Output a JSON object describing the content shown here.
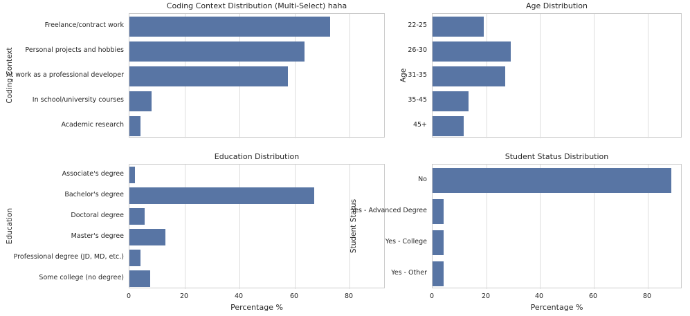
{
  "style": {
    "bar_color": "#5875a4",
    "grid_color": "#dcdcdc",
    "spine_color": "#cacaca",
    "text_color": "#262626",
    "background": "#ffffff"
  },
  "chart_data": [
    {
      "id": "coding-context",
      "type": "bar",
      "orientation": "horizontal",
      "title": "Coding Context Distribution (Multi-Select) haha",
      "ylabel": "Coding Context",
      "xlabel": "",
      "categories": [
        "Freelance/contract work",
        "Personal projects and hobbies",
        "At work as a professional developer",
        "In school/university courses",
        "Academic research"
      ],
      "values": [
        73,
        63.5,
        57.5,
        8,
        4
      ],
      "x_ticks": [
        0,
        20,
        40,
        60,
        80
      ],
      "xlim": [
        0,
        93
      ],
      "show_x_tick_labels": false,
      "grid": true,
      "legend": null
    },
    {
      "id": "age",
      "type": "bar",
      "orientation": "horizontal",
      "title": "Age Distribution",
      "ylabel": "Age",
      "xlabel": "",
      "categories": [
        "22-25",
        "26-30",
        "31-35",
        "35-45",
        "45+"
      ],
      "values": [
        19,
        29,
        27,
        13.5,
        11.5
      ],
      "x_ticks": [
        0,
        20,
        40,
        60,
        80
      ],
      "xlim": [
        0,
        93
      ],
      "show_x_tick_labels": false,
      "grid": true,
      "legend": null
    },
    {
      "id": "education",
      "type": "bar",
      "orientation": "horizontal",
      "title": "Education Distribution",
      "ylabel": "Education",
      "xlabel": "Percentage %",
      "categories": [
        "Associate's degree",
        "Bachelor's degree",
        "Doctoral degree",
        "Master's degree",
        "Professional degree (JD, MD, etc.)",
        "Some college (no degree)"
      ],
      "values": [
        2,
        67,
        5.5,
        13,
        4,
        7.5
      ],
      "x_ticks": [
        0,
        20,
        40,
        60,
        80
      ],
      "xlim": [
        0,
        93
      ],
      "show_x_tick_labels": true,
      "grid": true,
      "legend": null
    },
    {
      "id": "student-status",
      "type": "bar",
      "orientation": "horizontal",
      "title": "Student Status Distribution",
      "ylabel": "Student Status",
      "xlabel": "Percentage %",
      "categories": [
        "No",
        "Yes - Advanced Degree",
        "Yes - College",
        "Yes - Other"
      ],
      "values": [
        89,
        4,
        4,
        4
      ],
      "x_ticks": [
        0,
        20,
        40,
        60,
        80
      ],
      "xlim": [
        0,
        93
      ],
      "show_x_tick_labels": true,
      "grid": true,
      "legend": null
    }
  ]
}
